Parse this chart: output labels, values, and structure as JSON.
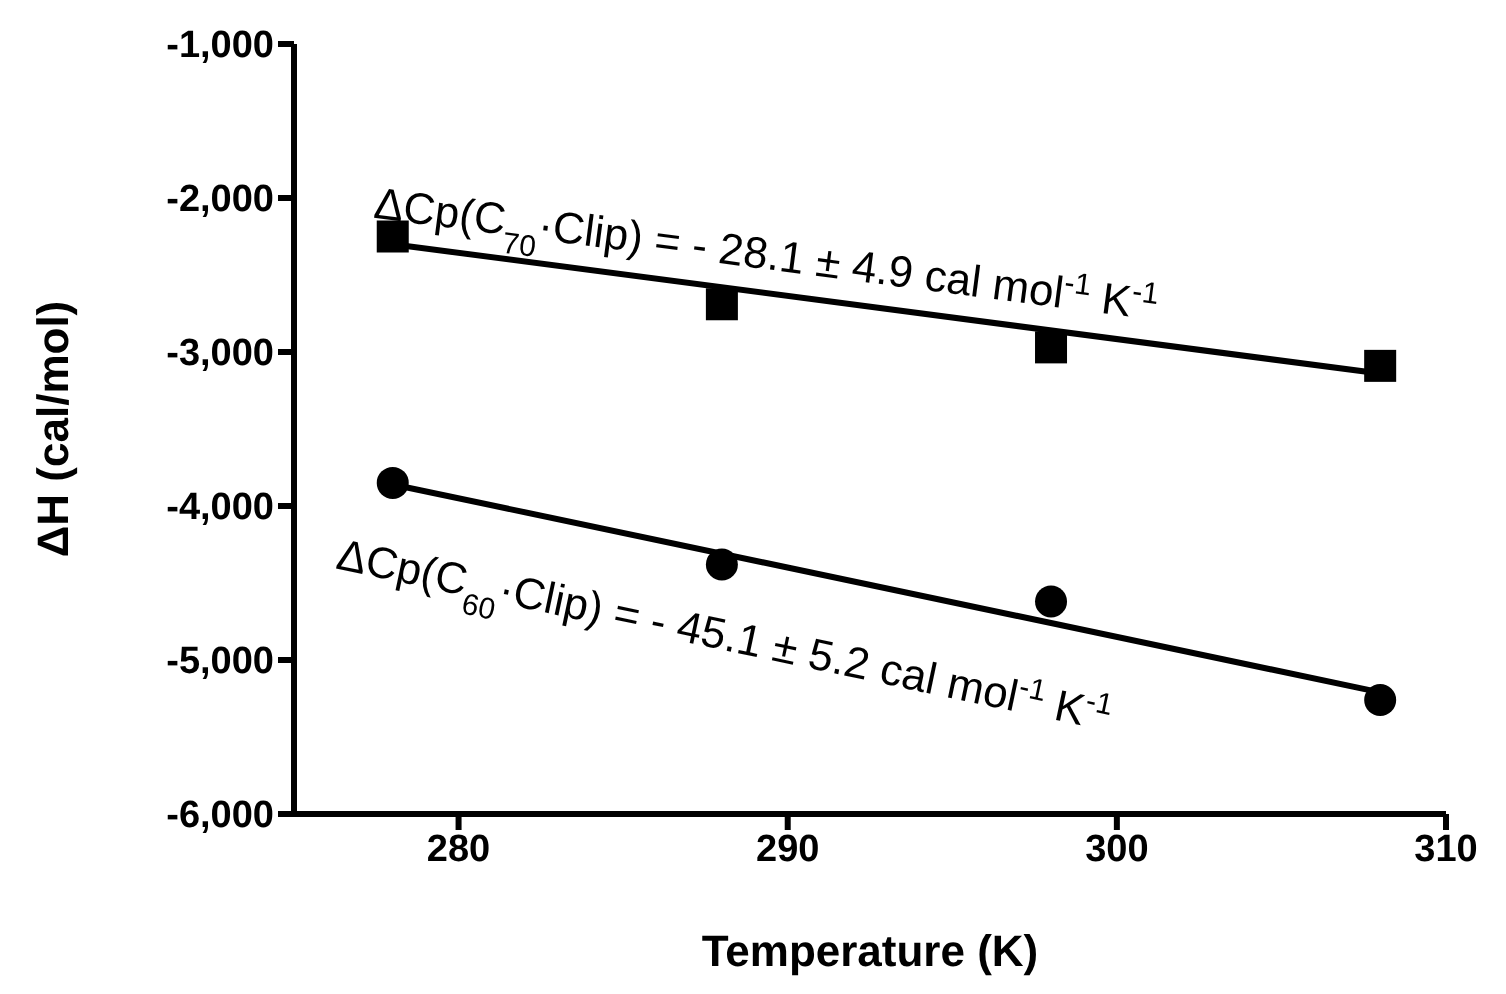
{
  "chart_data": {
    "type": "scatter",
    "xlabel": "Temperature (K)",
    "ylabel": "ΔH (cal/mol)",
    "xlim": [
      275,
      310
    ],
    "xticks": [
      280,
      290,
      300,
      310
    ],
    "ylim": [
      -6000,
      -1000
    ],
    "yticks": [
      {
        "value": -6000,
        "label": "-6,000"
      },
      {
        "value": -5000,
        "label": "-5,000"
      },
      {
        "value": -4000,
        "label": "-4,000"
      },
      {
        "value": -3000,
        "label": "-3,000"
      },
      {
        "value": -2000,
        "label": "-2,000"
      },
      {
        "value": -1000,
        "label": "-1,000"
      }
    ],
    "grid": false,
    "legend": false,
    "series": [
      {
        "type": "scatter",
        "marker": "square",
        "color": "#000000",
        "x": [
          278,
          288,
          298,
          308
        ],
        "values": [
          -2250,
          -2690,
          -2970,
          -3090
        ]
      },
      {
        "type": "scatter",
        "marker": "circle",
        "color": "#000000",
        "x": [
          278,
          288,
          298,
          308
        ],
        "values": [
          -3850,
          -4380,
          -4620,
          -5260
        ]
      },
      {
        "type": "line",
        "marker": "none",
        "color": "#000000",
        "x": [
          278,
          308
        ],
        "values": [
          -2300,
          -3140
        ]
      },
      {
        "type": "line",
        "marker": "none",
        "color": "#000000",
        "x": [
          278,
          308
        ],
        "values": [
          -3860,
          -5210
        ]
      }
    ],
    "annotations": [
      "ΔCp(C$_{70}$·Clip) = - 28.1 ± 4.9 cal mol$^{-1}$ K$^{-1}$",
      "ΔCp(C$_{60}$·Clip) = - 45.1 ± 5.2 cal mol$^{-1}$ K$^{-1}$"
    ]
  }
}
